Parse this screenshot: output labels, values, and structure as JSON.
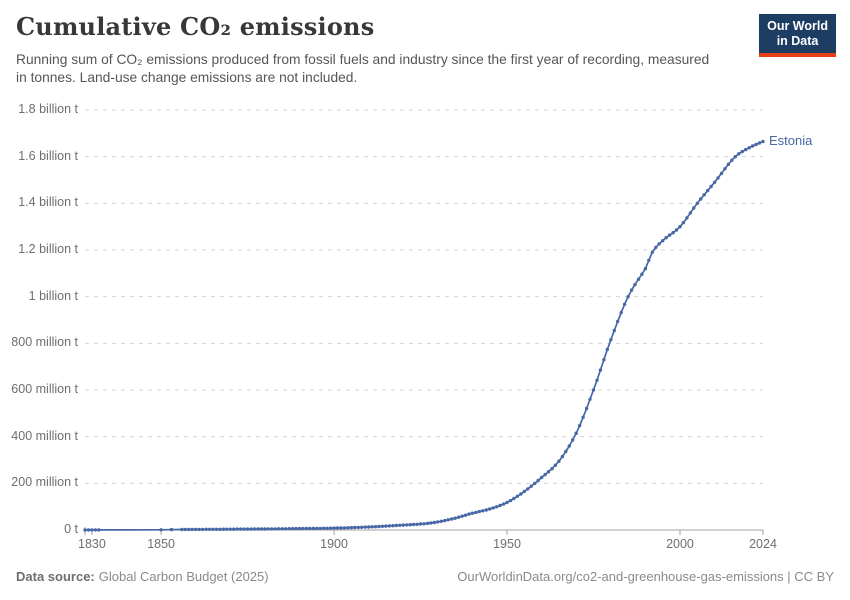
{
  "header": {
    "title": "Cumulative CO₂ emissions",
    "subtitle": "Running sum of CO₂ emissions produced from fossil fuels and industry since the first year of recording, measured in tonnes. Land-use change emissions are not included.",
    "logo": {
      "line1": "Our World",
      "line2": "in Data"
    }
  },
  "chart_data": {
    "type": "line",
    "title": "Cumulative CO₂ emissions",
    "entity": "Estonia",
    "unit": "tonnes",
    "x_range": [
      1828,
      2024
    ],
    "y_range_million_tonnes": [
      0,
      1800
    ],
    "grid": true,
    "legend_position": "end-of-line-label",
    "y_ticks": [
      {
        "label": "0 t",
        "value_million_t": 0
      },
      {
        "label": "200 million t",
        "value_million_t": 200
      },
      {
        "label": "400 million t",
        "value_million_t": 400
      },
      {
        "label": "600 million t",
        "value_million_t": 600
      },
      {
        "label": "800 million t",
        "value_million_t": 800
      },
      {
        "label": "1 billion t",
        "value_million_t": 1000
      },
      {
        "label": "1.2 billion t",
        "value_million_t": 1200
      },
      {
        "label": "1.4 billion t",
        "value_million_t": 1400
      },
      {
        "label": "1.6 billion t",
        "value_million_t": 1600
      },
      {
        "label": "1.8 billion t",
        "value_million_t": 1800
      }
    ],
    "x_ticks": [
      {
        "label": "1830",
        "year": 1830
      },
      {
        "label": "1850",
        "year": 1850
      },
      {
        "label": "1900",
        "year": 1900
      },
      {
        "label": "1950",
        "year": 1950
      },
      {
        "label": "2000",
        "year": 2000
      },
      {
        "label": "2024",
        "year": 2024
      }
    ],
    "series": [
      {
        "name": "Estonia",
        "color": "#4767a5",
        "values_are": "cumulative million tonnes CO₂ (estimated from plot)",
        "anchors_year_million_t": [
          [
            1828,
            0
          ],
          [
            1830,
            0.3
          ],
          [
            1832,
            0.5
          ],
          [
            1850,
            1
          ],
          [
            1853,
            1.5
          ],
          [
            1856,
            2
          ],
          [
            1860,
            2.5
          ],
          [
            1870,
            3.5
          ],
          [
            1880,
            4.5
          ],
          [
            1890,
            6
          ],
          [
            1900,
            8
          ],
          [
            1910,
            13
          ],
          [
            1920,
            21
          ],
          [
            1928,
            30
          ],
          [
            1934,
            47
          ],
          [
            1940,
            72
          ],
          [
            1945,
            90
          ],
          [
            1950,
            118
          ],
          [
            1955,
            165
          ],
          [
            1960,
            225
          ],
          [
            1965,
            295
          ],
          [
            1970,
            415
          ],
          [
            1975,
            600
          ],
          [
            1980,
            815
          ],
          [
            1985,
            1000
          ],
          [
            1988,
            1075
          ],
          [
            1990,
            1120
          ],
          [
            1992,
            1190
          ],
          [
            1995,
            1240
          ],
          [
            2000,
            1300
          ],
          [
            2005,
            1400
          ],
          [
            2010,
            1490
          ],
          [
            2016,
            1600
          ],
          [
            2020,
            1638
          ],
          [
            2024,
            1665
          ]
        ],
        "marker_segments_years": [
          [
            1828,
            1832
          ],
          [
            1850,
            1850
          ],
          [
            1853,
            1853
          ],
          [
            1856,
            2024
          ]
        ]
      }
    ]
  },
  "footer": {
    "source_label": "Data source:",
    "source_value": "Global Carbon Budget (2025)",
    "right_text": "OurWorldinData.org/co2-and-greenhouse-gas-emissions | CC BY"
  },
  "colors": {
    "line": "#4767a5",
    "grid": "#d5d5d5",
    "axis": "#a3a3a3",
    "tick_text": "#6e6e6e",
    "logo_bg": "#1d3d63",
    "logo_red": "#e63e13",
    "title_text": "#383838"
  }
}
